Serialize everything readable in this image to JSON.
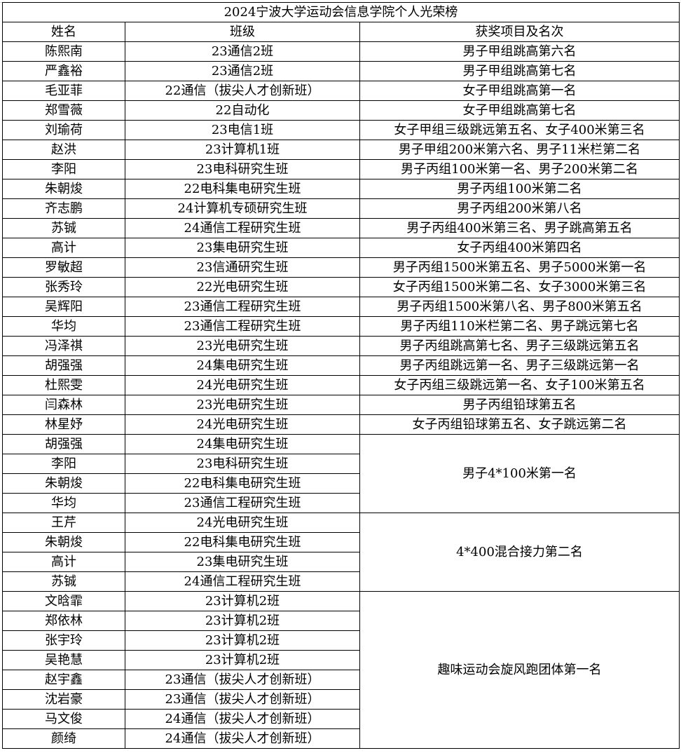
{
  "title": "2024宁波大学运动会信息学院个人光荣榜",
  "headers": [
    "姓名",
    "班级",
    "获奖项目及名次"
  ],
  "rows": [
    {
      "name": "陈熙南",
      "class": "23通信2班",
      "award": "男子甲组跳高第六名"
    },
    {
      "name": "严鑫裕",
      "class": "23通信2班",
      "award": "男子甲组跳高第七名"
    },
    {
      "name": "毛亚菲",
      "class": "22通信（拔尖人才创新班）",
      "award": "女子甲组跳高第一名"
    },
    {
      "name": "郑雪薇",
      "class": "22自动化",
      "award": "女子甲组跳高第七名"
    },
    {
      "name": "刘瑜荷",
      "class": "23电信1班",
      "award": "女子甲组三级跳远第五名、女子400米第三名"
    },
    {
      "name": "赵洪",
      "class": "23计算机1班",
      "award": "男子甲组200米第六名、男子11米栏第二名"
    },
    {
      "name": "李阳",
      "class": "23电科研究生班",
      "award": "男子丙组100米第一名、男子200米第二名"
    },
    {
      "name": "朱朝焌",
      "class": "22电科集电研究生班",
      "award": "男子丙组100米第二名"
    },
    {
      "name": "齐志鹏",
      "class": "24计算机专硕研究生班",
      "award": "男子丙组200米第八名"
    },
    {
      "name": "苏铖",
      "class": "24通信工程研究生班",
      "award": "男子丙组400米第三名、男子跳高第五名"
    },
    {
      "name": "高计",
      "class": "23集电研究生班",
      "award": "女子丙组400米第四名"
    },
    {
      "name": "罗敏超",
      "class": "23信通研究生班",
      "award": "男子丙组1500米第五名、男子5000米第一名"
    },
    {
      "name": "张秀玲",
      "class": "22光电研究生班",
      "award": "女子丙组1500米第二名、女子3000米第三名"
    },
    {
      "name": "吴辉阳",
      "class": "23通信工程研究生班",
      "award": "男子丙组1500米第八名、男子800米第五名"
    },
    {
      "name": "华均",
      "class": "23通信工程研究生班",
      "award": "男子丙组110米栏第二名、男子跳远第七名"
    },
    {
      "name": "冯泽祺",
      "class": "23光电研究生班",
      "award": "男子丙组跳高第七名、男子三级跳远第五名"
    },
    {
      "name": "胡强强",
      "class": "24集电研究生班",
      "award": "男子丙组跳远第一名、男子三级跳远第一名"
    },
    {
      "name": "杜熙雯",
      "class": "24光电研究生班",
      "award": "女子丙组三级跳远第一名、女子100米第五名"
    },
    {
      "name": "闫森林",
      "class": "23光电研究生班",
      "award": "男子丙组铅球第五名"
    },
    {
      "name": "林星妤",
      "class": "24光电研究生班",
      "award": "女子丙组铅球第五名、女子跳远第二名"
    }
  ],
  "groups": [
    {
      "award": "男子4*100米第一名",
      "members": [
        {
          "name": "胡强强",
          "class": "24集电研究生班"
        },
        {
          "name": "李阳",
          "class": "23电科研究生班"
        },
        {
          "name": "朱朝焌",
          "class": "22电科集电研究生班"
        },
        {
          "name": "华均",
          "class": "23通信工程研究生班"
        }
      ]
    },
    {
      "award": "4*400混合接力第二名",
      "members": [
        {
          "name": "王芹",
          "class": "24光电研究生班"
        },
        {
          "name": "朱朝焌",
          "class": "22电科集电研究生班"
        },
        {
          "name": "高计",
          "class": "23集电研究生班"
        },
        {
          "name": "苏铖",
          "class": "24通信工程研究生班"
        }
      ]
    },
    {
      "award": "趣味运动会旋风跑团体第一名",
      "members": [
        {
          "name": "文晗霏",
          "class": "23计算机2班"
        },
        {
          "name": "郑依林",
          "class": "23计算机2班"
        },
        {
          "name": "张宇玲",
          "class": "23计算机2班"
        },
        {
          "name": "吴艳慧",
          "class": "23计算机2班"
        },
        {
          "name": "赵宇鑫",
          "class": "23通信（拔尖人才创新班）"
        },
        {
          "name": "沈岩豪",
          "class": "23通信（拔尖人才创新班）"
        },
        {
          "name": "马文俊",
          "class": "24通信（拔尖人才创新班）"
        },
        {
          "name": "颜绮",
          "class": "24通信（拔尖人才创新班）"
        }
      ]
    }
  ]
}
